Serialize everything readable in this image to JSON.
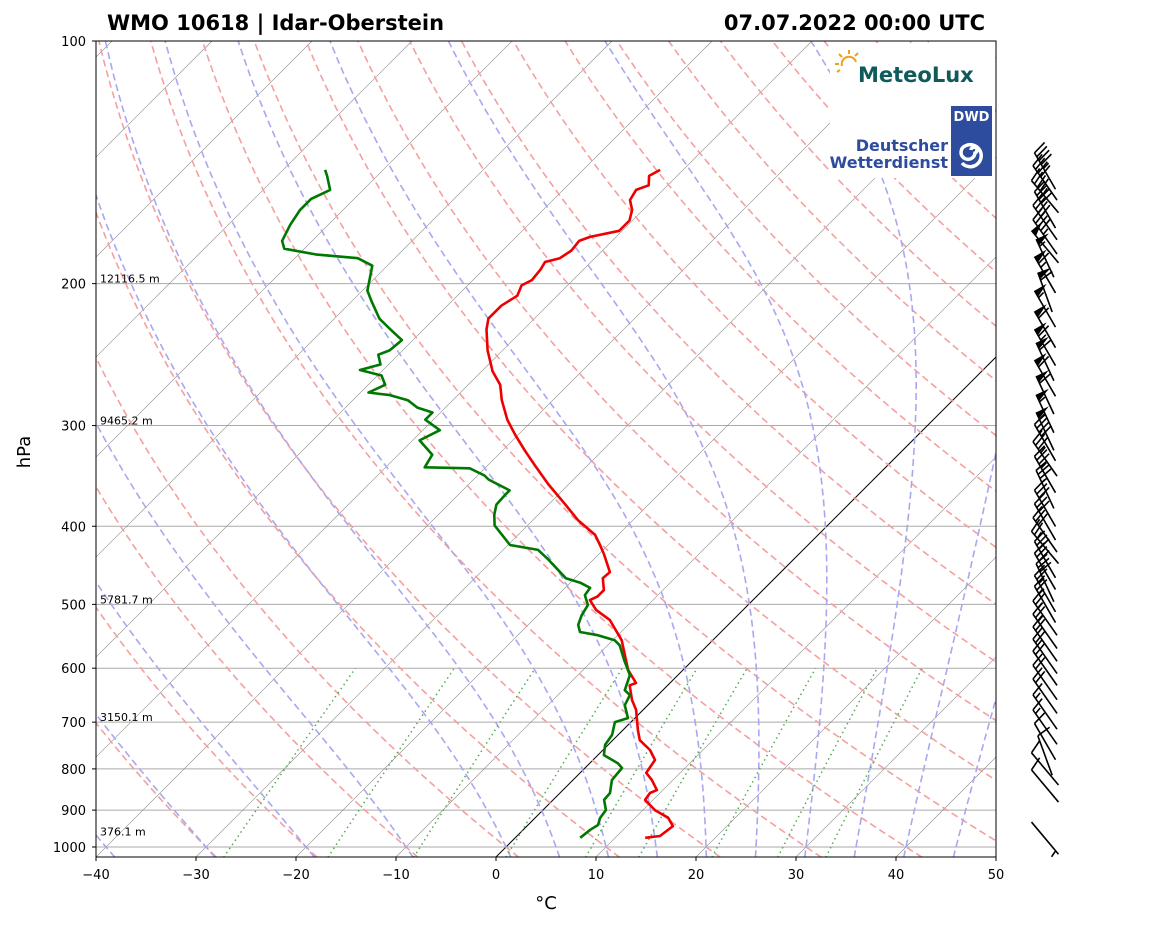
{
  "chart_data": {
    "type": "line",
    "subtype": "skew-t log-p diagram",
    "title_left": "WMO 10618 | Idar-Oberstein",
    "title_right": "07.07.2022 00:00 UTC",
    "xlabel": "°C",
    "ylabel": "hPa",
    "xlim": [
      -40,
      50
    ],
    "ylim": [
      1030,
      100
    ],
    "xticks": [
      "−40",
      "−30",
      "−20",
      "−10",
      "0",
      "10",
      "20",
      "30",
      "40",
      "50"
    ],
    "xtick_values": [
      -40,
      -30,
      -20,
      -10,
      0,
      10,
      20,
      30,
      40,
      50
    ],
    "yticks": [
      "100",
      "200",
      "300",
      "400",
      "500",
      "600",
      "700",
      "800",
      "900",
      "1000"
    ],
    "ytick_values": [
      100,
      200,
      300,
      400,
      500,
      600,
      700,
      800,
      900,
      1000
    ],
    "grid": true,
    "series": [
      {
        "name": "Temperature",
        "color": "#ee0000",
        "points": [
          [
            974,
            13.0
          ],
          [
            969,
            14.3
          ],
          [
            942,
            14.6
          ],
          [
            920,
            13.3
          ],
          [
            900,
            11.2
          ],
          [
            874,
            9.2
          ],
          [
            857,
            9.0
          ],
          [
            850,
            9.4
          ],
          [
            826,
            7.9
          ],
          [
            809,
            6.6
          ],
          [
            780,
            6.2
          ],
          [
            758,
            4.7
          ],
          [
            737,
            2.7
          ],
          [
            716,
            1.5
          ],
          [
            676,
            -0.7
          ],
          [
            657,
            -2.1
          ],
          [
            630,
            -3.8
          ],
          [
            626,
            -3.4
          ],
          [
            603,
            -5.5
          ],
          [
            578,
            -7.3
          ],
          [
            554,
            -9.1
          ],
          [
            523,
            -12.3
          ],
          [
            508,
            -14.7
          ],
          [
            494,
            -16.3
          ],
          [
            489,
            -15.9
          ],
          [
            480,
            -15.9
          ],
          [
            464,
            -17.2
          ],
          [
            456,
            -17.1
          ],
          [
            434,
            -19.4
          ],
          [
            422,
            -20.8
          ],
          [
            410,
            -22.3
          ],
          [
            393,
            -25.5
          ],
          [
            376,
            -28.3
          ],
          [
            355,
            -32.0
          ],
          [
            336,
            -35.3
          ],
          [
            322,
            -37.8
          ],
          [
            308,
            -40.3
          ],
          [
            295,
            -42.6
          ],
          [
            279,
            -45.1
          ],
          [
            267,
            -46.8
          ],
          [
            257,
            -48.9
          ],
          [
            242,
            -51.5
          ],
          [
            228,
            -53.7
          ],
          [
            221,
            -54.6
          ],
          [
            213,
            -54.6
          ],
          [
            207,
            -54.0
          ],
          [
            201,
            -54.6
          ],
          [
            198,
            -54.1
          ],
          [
            192,
            -54.3
          ],
          [
            188,
            -54.6
          ],
          [
            186,
            -53.5
          ],
          [
            182,
            -53.1
          ],
          [
            177,
            -53.3
          ],
          [
            175,
            -52.6
          ],
          [
            172,
            -50.3
          ],
          [
            167,
            -50.3
          ],
          [
            162,
            -51.1
          ],
          [
            157.5,
            -52.3
          ],
          [
            153,
            -52.7
          ],
          [
            151,
            -51.9
          ],
          [
            147,
            -52.8
          ],
          [
            144.5,
            -52.3
          ]
        ]
      },
      {
        "name": "Dewpoint",
        "color": "#007700",
        "points": [
          [
            974,
            6.5
          ],
          [
            952,
            6.7
          ],
          [
            939,
            7.0
          ],
          [
            920,
            6.5
          ],
          [
            900,
            6.3
          ],
          [
            874,
            5.1
          ],
          [
            857,
            5.0
          ],
          [
            826,
            3.9
          ],
          [
            798,
            3.7
          ],
          [
            787,
            2.8
          ],
          [
            769,
            0.6
          ],
          [
            747,
            -0.3
          ],
          [
            726,
            -0.6
          ],
          [
            700,
            -1.6
          ],
          [
            692,
            -0.7
          ],
          [
            667,
            -2.3
          ],
          [
            648,
            -2.8
          ],
          [
            639,
            -3.8
          ],
          [
            612,
            -4.8
          ],
          [
            586,
            -6.9
          ],
          [
            562,
            -8.8
          ],
          [
            554,
            -9.8
          ],
          [
            546,
            -12.0
          ],
          [
            541,
            -14.1
          ],
          [
            530,
            -15.0
          ],
          [
            516,
            -15.6
          ],
          [
            501,
            -16.0
          ],
          [
            487,
            -17.3
          ],
          [
            477,
            -17.5
          ],
          [
            470,
            -19.0
          ],
          [
            464,
            -20.9
          ],
          [
            440,
            -24.5
          ],
          [
            428,
            -26.5
          ],
          [
            422,
            -29.8
          ],
          [
            410,
            -31.6
          ],
          [
            399,
            -33.3
          ],
          [
            387,
            -34.4
          ],
          [
            376,
            -35.2
          ],
          [
            366,
            -35.3
          ],
          [
            361,
            -35.3
          ],
          [
            350,
            -38.5
          ],
          [
            346,
            -39.3
          ],
          [
            339,
            -41.5
          ],
          [
            338,
            -46.1
          ],
          [
            326,
            -46.6
          ],
          [
            313,
            -49.3
          ],
          [
            304,
            -48.3
          ],
          [
            295,
            -50.8
          ],
          [
            289,
            -50.8
          ],
          [
            285,
            -52.8
          ],
          [
            279,
            -54.5
          ],
          [
            275,
            -56.8
          ],
          [
            273,
            -59.2
          ],
          [
            267,
            -58.3
          ],
          [
            260,
            -59.6
          ],
          [
            256,
            -62.3
          ],
          [
            252,
            -60.8
          ],
          [
            245,
            -62.0
          ],
          [
            242,
            -61.3
          ],
          [
            235,
            -61.1
          ],
          [
            228,
            -63.3
          ],
          [
            221,
            -65.5
          ],
          [
            210,
            -68.1
          ],
          [
            204,
            -69.5
          ],
          [
            190,
            -71.5
          ],
          [
            186,
            -73.7
          ],
          [
            184,
            -78.3
          ],
          [
            181,
            -82.0
          ],
          [
            177,
            -83.0
          ],
          [
            169,
            -83.8
          ],
          [
            162,
            -84.3
          ],
          [
            157,
            -84.3
          ],
          [
            153,
            -83.3
          ],
          [
            147,
            -85.0
          ],
          [
            144.5,
            -85.8
          ]
        ]
      }
    ],
    "dry_adiabats_theta_c": [
      -30,
      -20,
      -10,
      0,
      10,
      20,
      30,
      40,
      50,
      60,
      70,
      80,
      90,
      100,
      110,
      120,
      130,
      140,
      150,
      160,
      170,
      180
    ],
    "moist_adiabats_t0_c": [
      -40,
      -30,
      -20,
      -10,
      0,
      5,
      10,
      15,
      20,
      25,
      30,
      35,
      40,
      45
    ],
    "mixing_ratio_lines_gkg": [
      0.4,
      1,
      2,
      4,
      7,
      10,
      16,
      24,
      32
    ],
    "highlighted_isotherm_c": 0,
    "height_labels": [
      {
        "pressure": 200,
        "text": "12116.5 m"
      },
      {
        "pressure": 300,
        "text": "9465.2 m"
      },
      {
        "pressure": 500,
        "text": "5781.7 m"
      },
      {
        "pressure": 700,
        "text": "3150.1 m"
      },
      {
        "pressure": 970,
        "text": "376.1 m"
      }
    ],
    "wind_barbs_p_kt_dir": [
      [
        145,
        45,
        330
      ],
      [
        150,
        40,
        325
      ],
      [
        156,
        45,
        320
      ],
      [
        162,
        40,
        330
      ],
      [
        168,
        40,
        325
      ],
      [
        175,
        45,
        325
      ],
      [
        180,
        50,
        320
      ],
      [
        186,
        55,
        335
      ],
      [
        195,
        65,
        330
      ],
      [
        205,
        60,
        340
      ],
      [
        215,
        55,
        330
      ],
      [
        228,
        60,
        330
      ],
      [
        240,
        65,
        330
      ],
      [
        250,
        60,
        335
      ],
      [
        262,
        60,
        330
      ],
      [
        275,
        60,
        335
      ],
      [
        290,
        55,
        335
      ],
      [
        305,
        55,
        335
      ],
      [
        315,
        40,
        330
      ],
      [
        330,
        35,
        325
      ],
      [
        345,
        35,
        330
      ],
      [
        360,
        35,
        335
      ],
      [
        380,
        30,
        330
      ],
      [
        395,
        30,
        330
      ],
      [
        410,
        30,
        325
      ],
      [
        425,
        25,
        320
      ],
      [
        440,
        30,
        330
      ],
      [
        455,
        30,
        330
      ],
      [
        470,
        30,
        335
      ],
      [
        485,
        25,
        330
      ],
      [
        500,
        25,
        330
      ],
      [
        520,
        25,
        325
      ],
      [
        540,
        25,
        325
      ],
      [
        560,
        20,
        325
      ],
      [
        580,
        20,
        325
      ],
      [
        600,
        20,
        325
      ],
      [
        625,
        20,
        325
      ],
      [
        650,
        20,
        325
      ],
      [
        680,
        15,
        325
      ],
      [
        710,
        15,
        325
      ],
      [
        740,
        10,
        330
      ],
      [
        770,
        10,
        340
      ],
      [
        800,
        10,
        320
      ],
      [
        840,
        10,
        320
      ],
      [
        975,
        5,
        140
      ]
    ]
  },
  "logos": {
    "meteolux": "MeteoLux",
    "dwd_badge": "DWD",
    "dwd_line1": "Deutscher",
    "dwd_line2": "Wetterdienst"
  },
  "colors": {
    "dry_adiabat": "#f4a0a0",
    "moist_adiabat": "#a8a8f0",
    "mixing_ratio": "#55aa55",
    "isotherm": "#888888",
    "meteolux": "#0f5a5a",
    "dwd": "#2d4c9e"
  }
}
